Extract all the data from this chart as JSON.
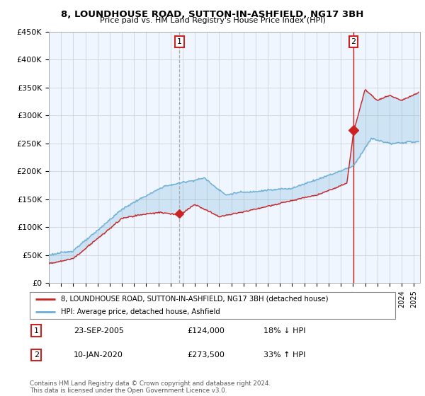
{
  "title": "8, LOUNDHOUSE ROAD, SUTTON-IN-ASHFIELD, NG17 3BH",
  "subtitle": "Price paid vs. HM Land Registry's House Price Index (HPI)",
  "ylabel_ticks": [
    "£0",
    "£50K",
    "£100K",
    "£150K",
    "£200K",
    "£250K",
    "£300K",
    "£350K",
    "£400K",
    "£450K"
  ],
  "ylim": [
    0,
    450000
  ],
  "xlim_start": 1995.0,
  "xlim_end": 2025.5,
  "marker1_x": 2005.73,
  "marker1_y": 124000,
  "marker2_x": 2020.03,
  "marker2_y": 273500,
  "legend_line1": "8, LOUNDHOUSE ROAD, SUTTON-IN-ASHFIELD, NG17 3BH (detached house)",
  "legend_line2": "HPI: Average price, detached house, Ashfield",
  "annot1_num": "1",
  "annot1_date": "23-SEP-2005",
  "annot1_price": "£124,000",
  "annot1_hpi": "18% ↓ HPI",
  "annot2_num": "2",
  "annot2_date": "10-JAN-2020",
  "annot2_price": "£273,500",
  "annot2_hpi": "33% ↑ HPI",
  "footer": "Contains HM Land Registry data © Crown copyright and database right 2024.\nThis data is licensed under the Open Government Licence v3.0.",
  "color_red": "#cc2222",
  "color_blue": "#6baed6",
  "color_fill": "#ddeeff",
  "color_grid": "#cccccc",
  "color_dashed1": "#aaaaaa",
  "color_dashed2": "#cc2222"
}
